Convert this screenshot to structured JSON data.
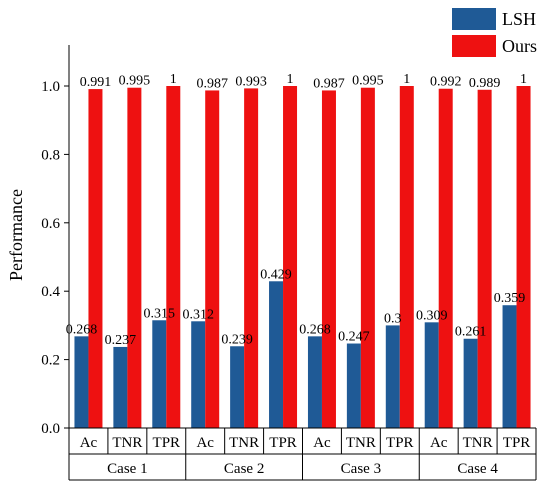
{
  "chart_data": {
    "type": "bar",
    "ylabel": "Performance",
    "ylim": [
      0,
      1.1
    ],
    "yticks": [
      0.0,
      0.2,
      0.4,
      0.6,
      0.8,
      1.0
    ],
    "ytick_labels": [
      "0.0",
      "0.2",
      "0.4",
      "0.6",
      "0.8",
      "1.0"
    ],
    "groups": [
      {
        "label": "Case 1",
        "subcategories": [
          "Ac",
          "TNR",
          "TPR"
        ]
      },
      {
        "label": "Case 2",
        "subcategories": [
          "Ac",
          "TNR",
          "TPR"
        ]
      },
      {
        "label": "Case 3",
        "subcategories": [
          "Ac",
          "TNR",
          "TPR"
        ]
      },
      {
        "label": "Case 4",
        "subcategories": [
          "Ac",
          "TNR",
          "TPR"
        ]
      }
    ],
    "series": [
      {
        "name": "LSH",
        "color": "#1f5a96",
        "values": [
          0.268,
          0.237,
          0.315,
          0.312,
          0.239,
          0.429,
          0.268,
          0.247,
          0.3,
          0.309,
          0.261,
          0.359
        ],
        "labels": [
          "0.268",
          "0.237",
          "0.315",
          "0.312",
          "0.239",
          "0.429",
          "0.268",
          "0.247",
          "0.3",
          "0.309",
          "0.261",
          "0.359"
        ]
      },
      {
        "name": "Ours",
        "color": "#ee1111",
        "values": [
          0.991,
          0.995,
          1,
          0.987,
          0.993,
          1,
          0.987,
          0.995,
          1,
          0.992,
          0.989,
          1
        ],
        "labels": [
          "0.991",
          "0.995",
          "1",
          "0.987",
          "0.993",
          "1",
          "0.987",
          "0.995",
          "1",
          "0.992",
          "0.989",
          "1"
        ]
      }
    ],
    "legend": {
      "position": "top-right"
    },
    "grid": false
  }
}
